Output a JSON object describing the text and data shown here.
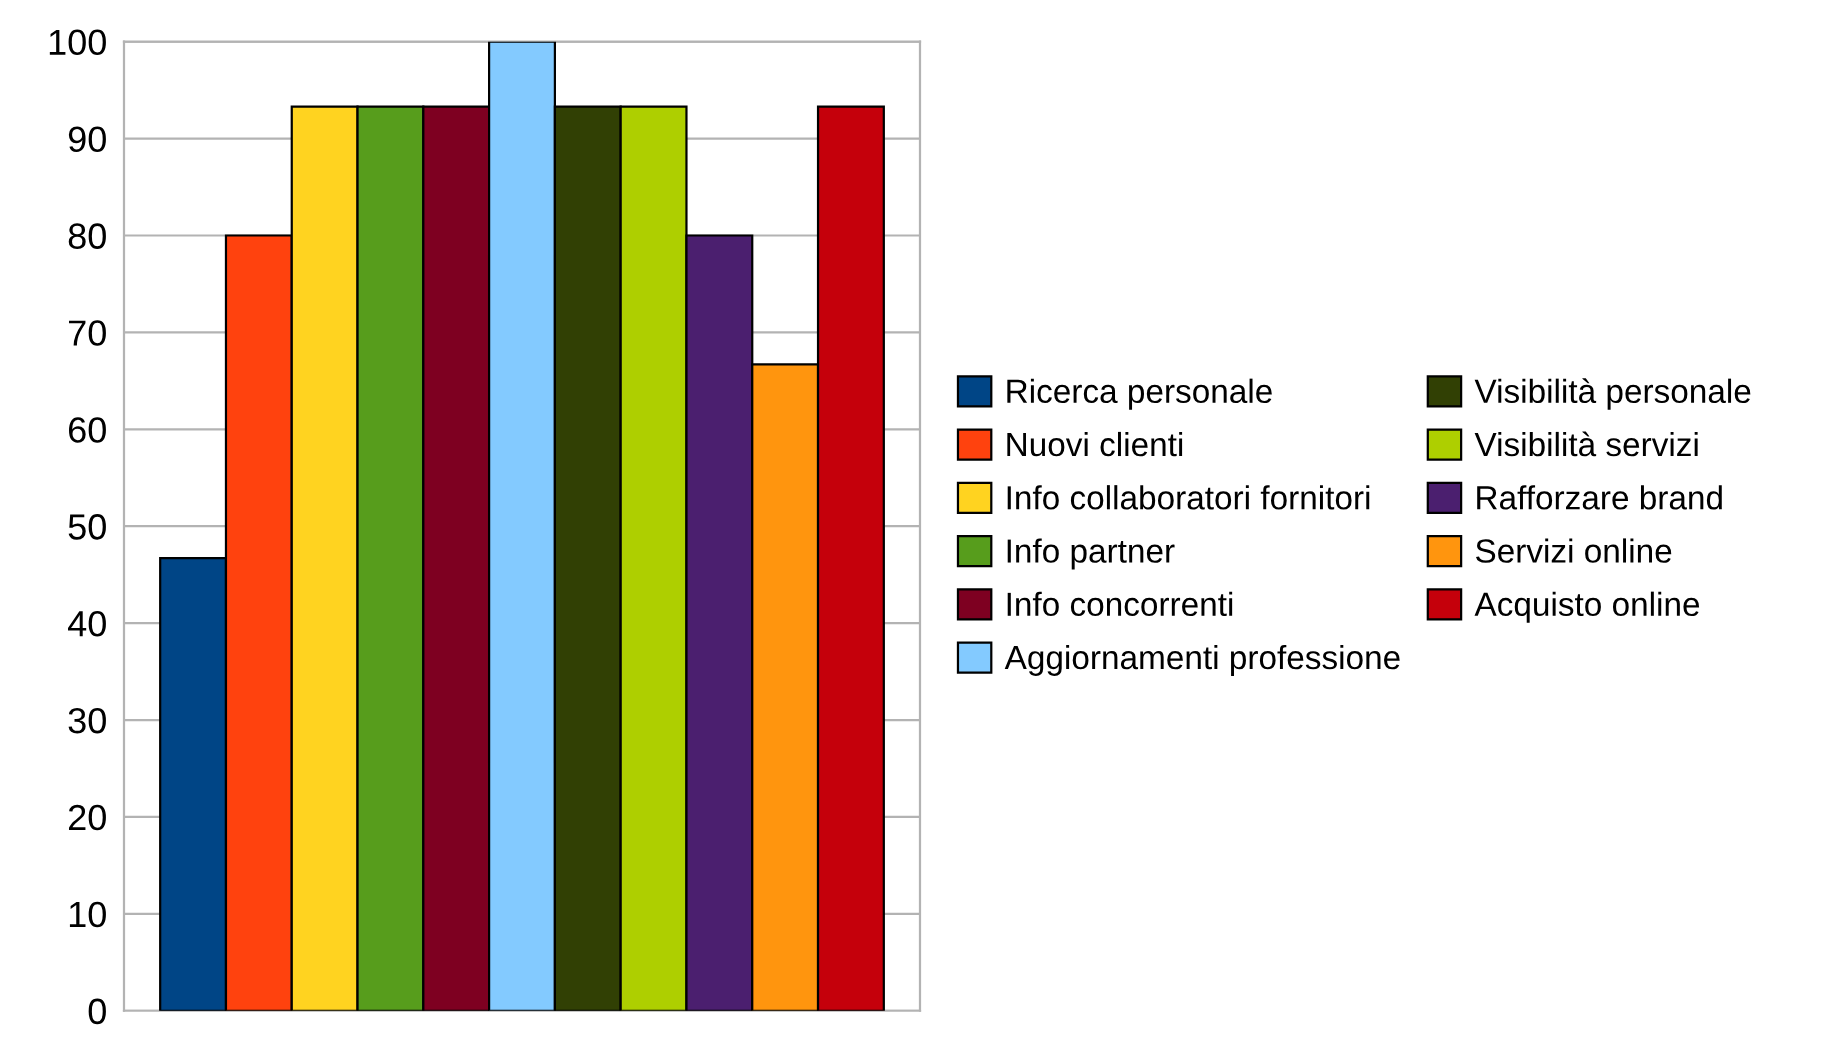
{
  "chart_data": {
    "type": "bar",
    "categories": [
      null
    ],
    "series": [
      {
        "name": "Ricerca personale",
        "color": "#004586",
        "values": [
          46.7
        ]
      },
      {
        "name": "Nuovi clienti",
        "color": "#ff420e",
        "values": [
          80
        ]
      },
      {
        "name": "Info collaboratori fornitori",
        "color": "#ffd320",
        "values": [
          93.3
        ]
      },
      {
        "name": "Info partner",
        "color": "#579d1c",
        "values": [
          93.3
        ]
      },
      {
        "name": "Info concorrenti",
        "color": "#7e0021",
        "values": [
          93.3
        ]
      },
      {
        "name": "Aggiornamenti professione",
        "color": "#83caff",
        "values": [
          100
        ]
      },
      {
        "name": "Visibilità personale",
        "color": "#314004",
        "values": [
          93.3
        ]
      },
      {
        "name": "Visibilità servizi",
        "color": "#aecf00",
        "values": [
          93.3
        ]
      },
      {
        "name": "Rafforzare brand",
        "color": "#4b1f6f",
        "values": [
          80
        ]
      },
      {
        "name": "Servizi online",
        "color": "#ff950e",
        "values": [
          66.7
        ]
      },
      {
        "name": "Acquisto online",
        "color": "#c5000b",
        "values": [
          93.3
        ]
      }
    ],
    "ylim": [
      0,
      100
    ],
    "yticks": [
      0,
      10,
      20,
      30,
      40,
      50,
      60,
      70,
      80,
      90,
      100
    ],
    "grid": "y",
    "legend": "right",
    "tick_labels": "y"
  }
}
